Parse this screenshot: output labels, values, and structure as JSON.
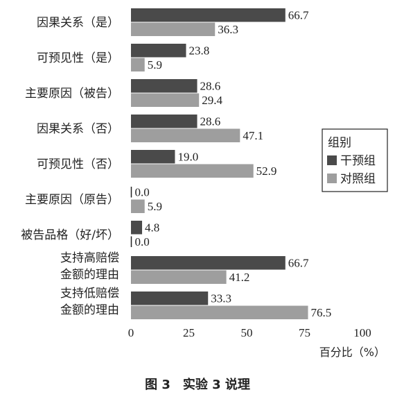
{
  "chart_data": {
    "type": "bar",
    "orientation": "horizontal",
    "categories": [
      [
        "因果关系（是）"
      ],
      [
        "可预见性（是）"
      ],
      [
        "主要原因（被告）"
      ],
      [
        "因果关系（否）"
      ],
      [
        "可预见性（否）"
      ],
      [
        "主要原因（原告）"
      ],
      [
        "被告品格（好/坏）"
      ],
      [
        "支持高赔偿",
        "金额的理由"
      ],
      [
        "支持低赔偿",
        "金额的理由"
      ]
    ],
    "series": [
      {
        "name": "干预组",
        "color": "#4a4a4a",
        "values": [
          66.7,
          23.8,
          28.6,
          28.6,
          19.0,
          0.0,
          4.8,
          66.7,
          33.3
        ]
      },
      {
        "name": "对照组",
        "color": "#9e9e9e",
        "values": [
          36.3,
          5.9,
          29.4,
          47.1,
          52.9,
          5.9,
          0.0,
          41.2,
          76.5
        ]
      }
    ],
    "value_labels": [
      [
        "66.7",
        "23.8",
        "28.6",
        "28.6",
        "19.0",
        "0.0",
        "4.8",
        "66.7",
        "33.3"
      ],
      [
        "36.3",
        "5.9",
        "29.4",
        "47.1",
        "52.9",
        "5.9",
        "0.0",
        "41.2",
        "76.5"
      ]
    ],
    "xlim": [
      0,
      100
    ],
    "xticks": [
      "0",
      "25",
      "50",
      "75",
      "100"
    ],
    "xlabel": "百分比（%）",
    "legend": {
      "title": "组别",
      "position": "right"
    },
    "grid": false
  },
  "caption": "图 3　实验 3 说理"
}
